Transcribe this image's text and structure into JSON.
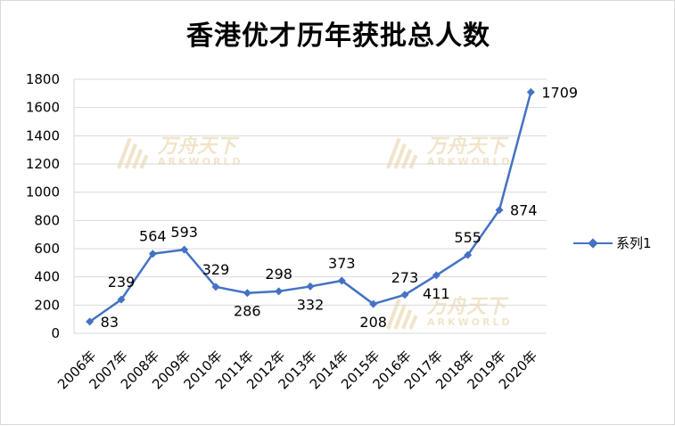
{
  "title": "香港优才历年获批总人数",
  "colors": {
    "series": "#4472C4",
    "grid": "#d9d9d9",
    "watermark": "#d9b36a"
  },
  "watermark": {
    "cn": "万舟天下",
    "en": "ARKWORLD"
  },
  "chart_data": {
    "type": "line",
    "title": "香港优才历年获批总人数",
    "categories": [
      "2006年",
      "2007年",
      "2008年",
      "2009年",
      "2010年",
      "2011年",
      "2012年",
      "2013年",
      "2014年",
      "2015年",
      "2016年",
      "2017年",
      "2018年",
      "2019年",
      "2020年"
    ],
    "series": [
      {
        "name": "系列1",
        "values": [
          83,
          239,
          564,
          593,
          329,
          286,
          298,
          332,
          373,
          208,
          273,
          411,
          555,
          874,
          1709
        ]
      }
    ],
    "ylim": [
      0,
      1800
    ],
    "yticks": [
      0,
      200,
      400,
      600,
      800,
      1000,
      1200,
      1400,
      1600,
      1800
    ],
    "grid": true,
    "legend_position": "right",
    "marker": "diamond",
    "data_labels": true
  }
}
